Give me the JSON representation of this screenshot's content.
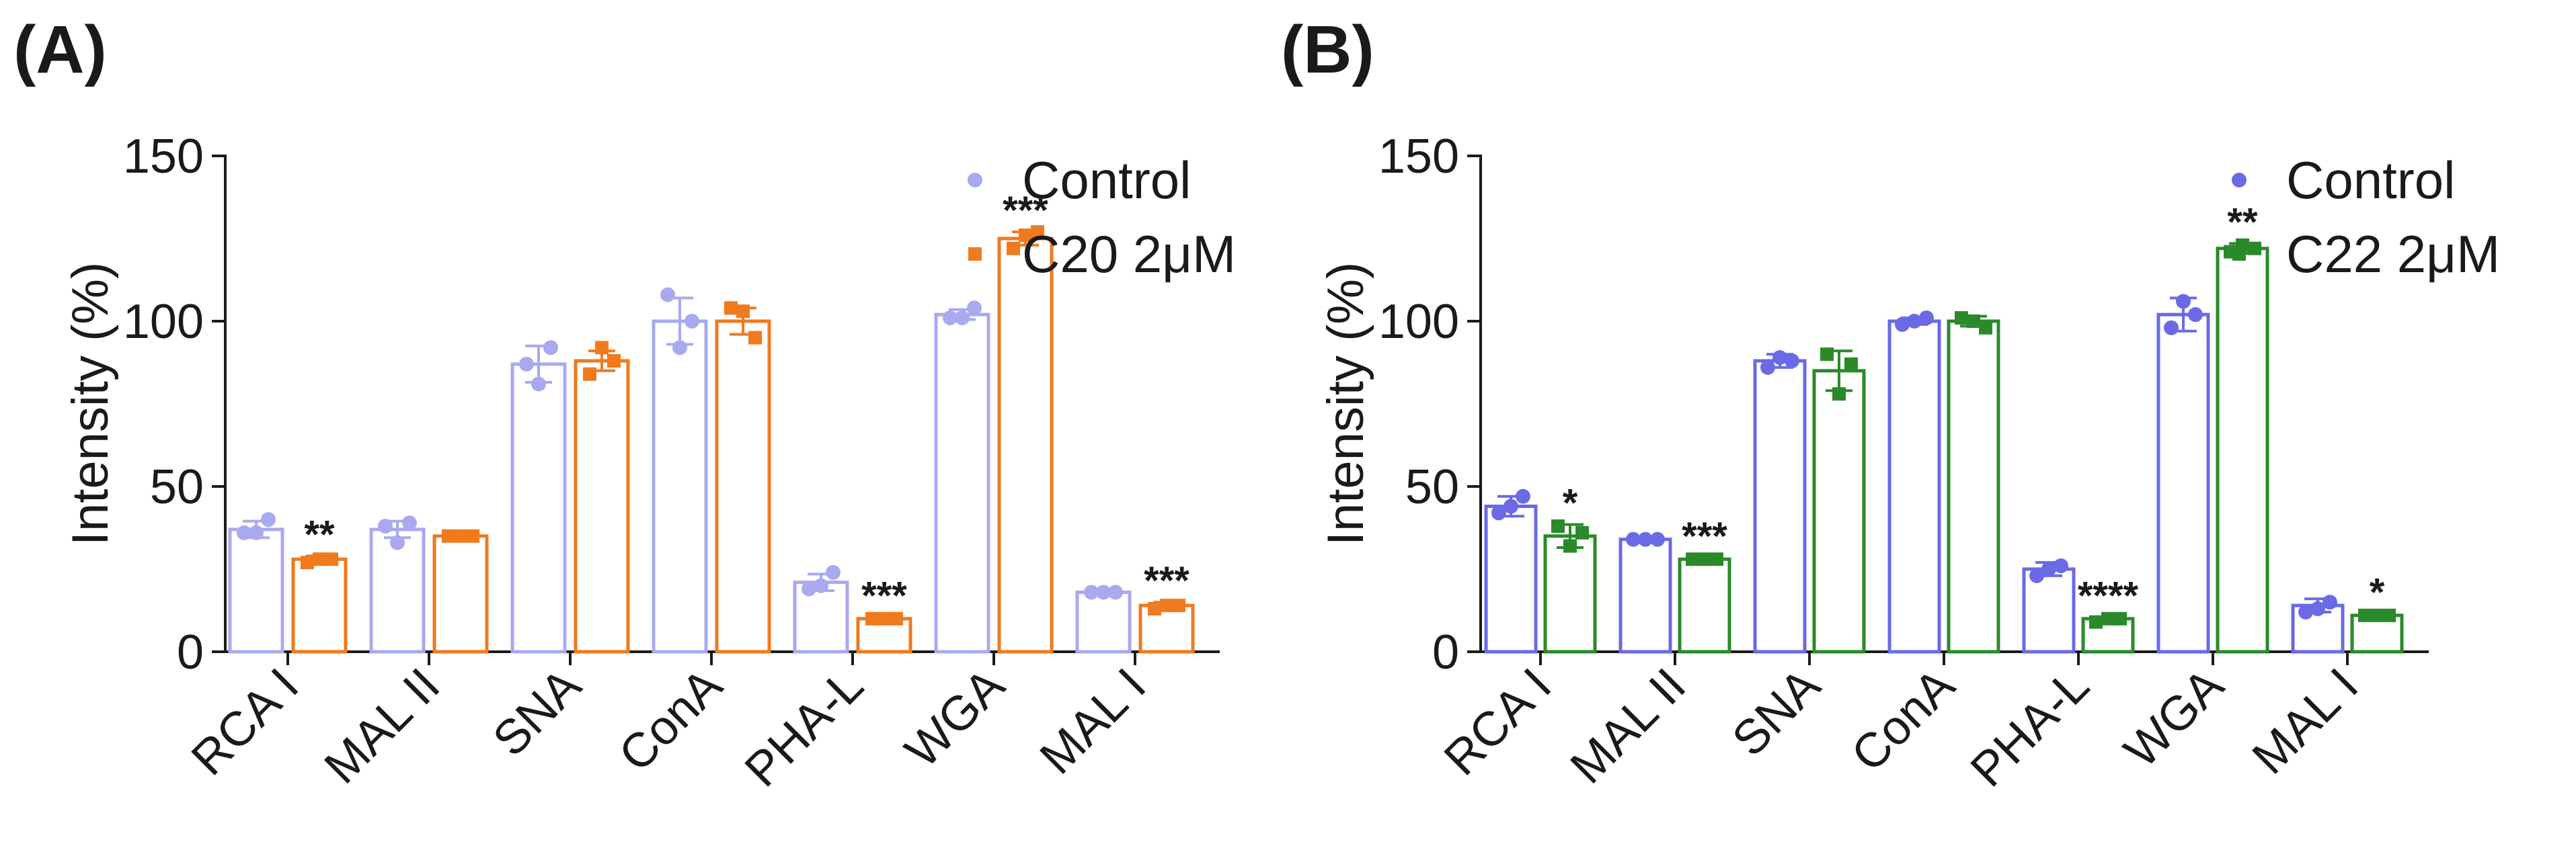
{
  "chart_data": [
    {
      "type": "bar",
      "panel_label": "(A)",
      "ylabel": "Intensity (%)",
      "xlabel": "",
      "ylim": [
        0,
        150
      ],
      "yticks": [
        "0",
        "50",
        "100",
        "150"
      ],
      "categories": [
        "RCA I",
        "MAL II",
        "SNA",
        "ConA",
        "PHA-L",
        "WGA",
        "MAL I"
      ],
      "legend_position": "top-right",
      "series": [
        {
          "name": "Control",
          "color": "#a9a9f0",
          "marker": "circle",
          "values": [
            37,
            37,
            87,
            100,
            21,
            102,
            18
          ],
          "errors": [
            2.5,
            2.5,
            5.5,
            7,
            2.5,
            1.5,
            0.3
          ],
          "points": [
            [
              36,
              36,
              40
            ],
            [
              38,
              33,
              39
            ],
            [
              87,
              81,
              92
            ],
            [
              108,
              92,
              100
            ],
            [
              19,
              20,
              24
            ],
            [
              101,
              101,
              104
            ],
            [
              18,
              18,
              18
            ]
          ],
          "significance": [
            "",
            "",
            "",
            "",
            "",
            "",
            ""
          ]
        },
        {
          "name": "C20 2μM",
          "color": "#f07a1e",
          "marker": "square",
          "values": [
            28,
            35,
            88,
            100,
            10,
            125,
            14
          ],
          "errors": [
            1,
            0.5,
            3,
            4,
            0.5,
            2,
            1
          ],
          "points": [
            [
              27,
              28,
              28
            ],
            [
              35,
              35,
              35
            ],
            [
              84,
              92,
              88
            ],
            [
              104,
              103,
              95
            ],
            [
              10,
              10,
              10
            ],
            [
              122,
              126,
              127
            ],
            [
              13,
              14,
              14
            ]
          ],
          "significance": [
            "**",
            "",
            "",
            "",
            "***",
            "***",
            "***"
          ]
        }
      ]
    },
    {
      "type": "bar",
      "panel_label": "(B)",
      "ylabel": "Intensity (%)",
      "xlabel": "",
      "ylim": [
        0,
        150
      ],
      "yticks": [
        "0",
        "50",
        "100",
        "150"
      ],
      "categories": [
        "RCA I",
        "MAL II",
        "SNA",
        "ConA",
        "PHA-L",
        "WGA",
        "MAL I"
      ],
      "legend_position": "top-right",
      "series": [
        {
          "name": "Control",
          "color": "#6a6ae6",
          "marker": "circle",
          "values": [
            44,
            34,
            88,
            100,
            25,
            102,
            14
          ],
          "errors": [
            3,
            0.5,
            2,
            1,
            2,
            5,
            2
          ],
          "points": [
            [
              42,
              44,
              47
            ],
            [
              34,
              34,
              34
            ],
            [
              86,
              89,
              88
            ],
            [
              99,
              100,
              101
            ],
            [
              23,
              25,
              26
            ],
            [
              98,
              106,
              102
            ],
            [
              12,
              13,
              15
            ]
          ],
          "significance": [
            "",
            "",
            "",
            "",
            "",
            "",
            ""
          ]
        },
        {
          "name": "C22 2μM",
          "color": "#2a8a2a",
          "marker": "square",
          "values": [
            35,
            28,
            85,
            100,
            10,
            122,
            11
          ],
          "errors": [
            3.5,
            0.5,
            6,
            1.5,
            0.5,
            1.5,
            0.5
          ],
          "points": [
            [
              38,
              32,
              36
            ],
            [
              28,
              28,
              28
            ],
            [
              90,
              78,
              87
            ],
            [
              101,
              100,
              98
            ],
            [
              9,
              10,
              10
            ],
            [
              121,
              123,
              122
            ],
            [
              11,
              11,
              11
            ]
          ],
          "significance": [
            "*",
            "***",
            "",
            "",
            "****",
            "**",
            "*"
          ]
        }
      ]
    }
  ]
}
